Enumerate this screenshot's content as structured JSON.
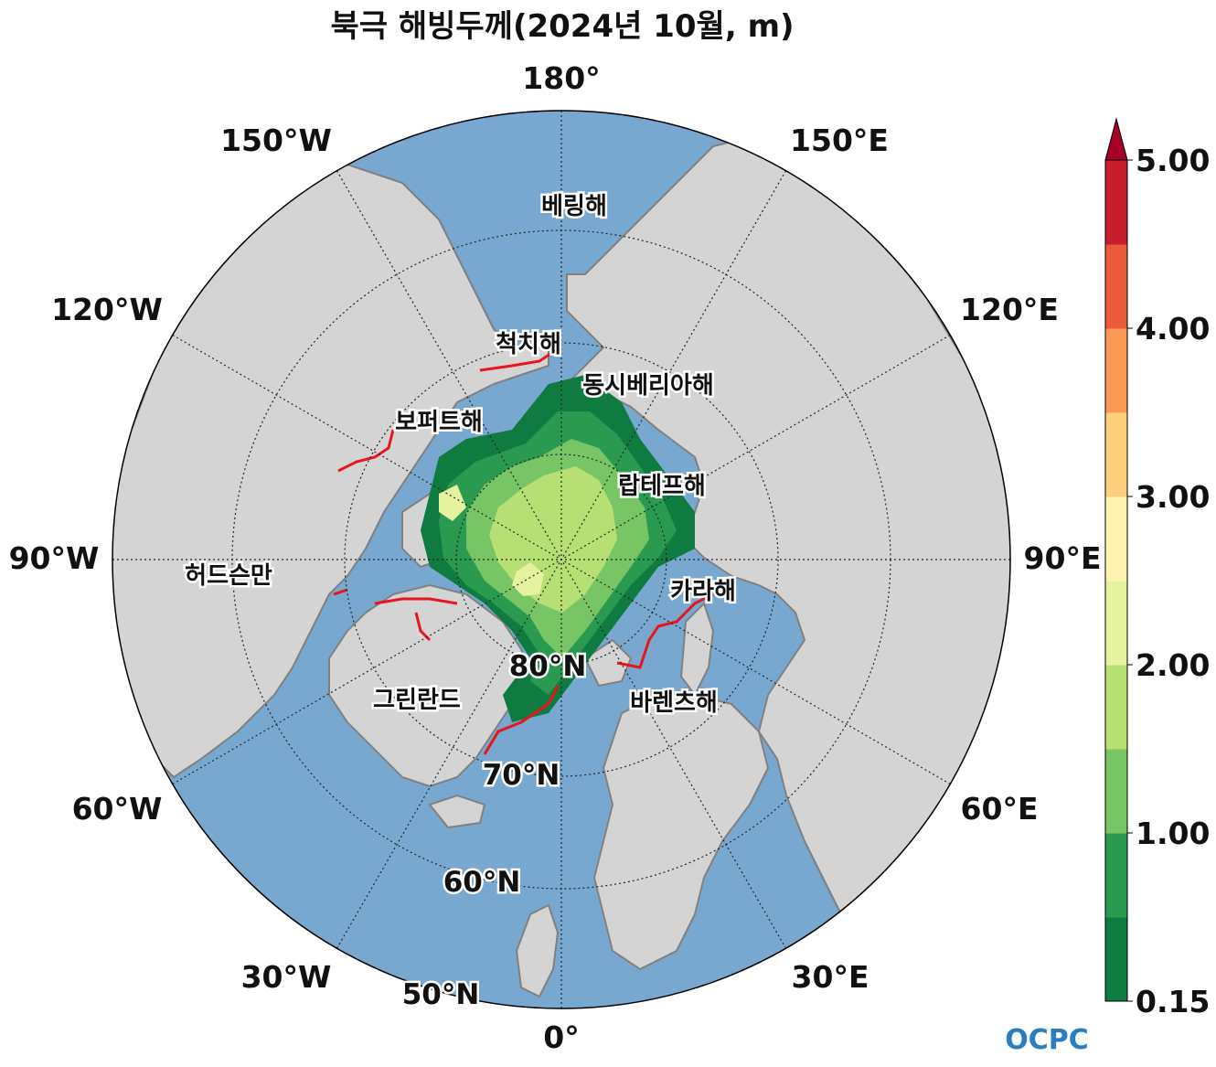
{
  "title": "북극 해빙두께(2024년 10월, m)",
  "longitude_labels": {
    "lon_180": "180°",
    "lon_150e": "150°E",
    "lon_120e": "120°E",
    "lon_90e": "90°E",
    "lon_60e": "60°E",
    "lon_30e": "30°E",
    "lon_0": "0°",
    "lon_30w": "30°W",
    "lon_60w": "60°W",
    "lon_90w": "90°W",
    "lon_120w": "120°W",
    "lon_150w": "150°W"
  },
  "latitude_labels": {
    "lat_80": "80°N",
    "lat_70": "70°N",
    "lat_60": "60°N",
    "lat_50": "50°N"
  },
  "sea_labels": {
    "bering": "베링해",
    "chukchi": "척치해",
    "east_siberian": "동시베리아해",
    "beaufort": "보퍼트해",
    "laptev": "랍테프해",
    "hudson": "허드슨만",
    "kara": "카라해",
    "greenland": "그린란드",
    "barents": "바렌츠해"
  },
  "colorbar": {
    "ticks": [
      "5.00",
      "4.00",
      "3.00",
      "2.00",
      "1.00",
      "0.15"
    ],
    "bounds": [
      0.15,
      0.5,
      1.0,
      1.5,
      2.0,
      2.5,
      3.0,
      3.5,
      4.0,
      4.5,
      5.0
    ],
    "colors": [
      "#0f7b41",
      "#2a9a50",
      "#78c565",
      "#b6df74",
      "#e5f3a0",
      "#fef4b0",
      "#fdcf7c",
      "#fb9a55",
      "#ec5a3c",
      "#c71e2e"
    ],
    "extend_color": "#a50026"
  },
  "colors": {
    "ocean": "#78a8cf",
    "land": "#d4d4d4",
    "coast": "#808080",
    "ice_edge_climatology": "#e8151d"
  },
  "logo": "OCPC"
}
